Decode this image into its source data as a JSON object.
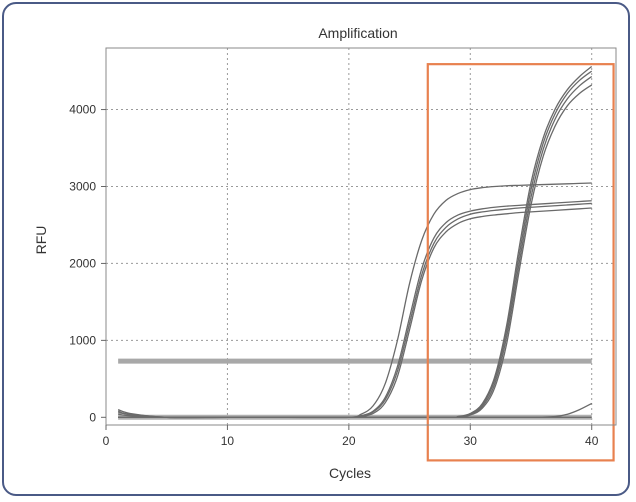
{
  "chart_data": {
    "type": "line",
    "title": "Amplification",
    "xlabel": "Cycles",
    "ylabel": "RFU",
    "xlim": [
      0,
      42
    ],
    "ylim": [
      -100,
      4800
    ],
    "xticks": [
      0,
      10,
      20,
      30,
      40
    ],
    "yticks": [
      0,
      1000,
      2000,
      3000,
      4000
    ],
    "grid": true,
    "threshold": {
      "value": 730,
      "x_range": [
        1,
        40
      ],
      "color": "#a8a8a8"
    },
    "highlight_box": {
      "x_range": [
        26.5,
        41.8
      ],
      "y_range": [
        -560,
        4590
      ],
      "color": "#e8814f"
    },
    "line_color": "#6a6a6a",
    "series": [
      {
        "x": [
          1,
          2,
          5,
          10,
          15,
          20,
          21,
          22,
          23,
          24,
          25,
          26,
          27,
          28,
          29,
          30,
          31,
          32,
          33,
          34,
          35,
          36,
          37,
          38,
          39,
          40
        ],
        "y": [
          60,
          40,
          0,
          0,
          0,
          0,
          40,
          150,
          440,
          1000,
          1740,
          2300,
          2640,
          2820,
          2910,
          2960,
          2985,
          3000,
          3010,
          3015,
          3020,
          3025,
          3030,
          3035,
          3040,
          3045
        ]
      },
      {
        "x": [
          1,
          2,
          5,
          10,
          15,
          20,
          21,
          22,
          23,
          24,
          25,
          26,
          27,
          28,
          29,
          30,
          31,
          32,
          33,
          34,
          35,
          36,
          37,
          38,
          39,
          40
        ],
        "y": [
          80,
          30,
          0,
          0,
          0,
          0,
          20,
          80,
          260,
          660,
          1300,
          1930,
          2330,
          2530,
          2630,
          2680,
          2710,
          2730,
          2745,
          2755,
          2765,
          2775,
          2785,
          2795,
          2805,
          2815
        ]
      },
      {
        "x": [
          1,
          2,
          5,
          10,
          15,
          20,
          21,
          22,
          23,
          24,
          25,
          26,
          27,
          28,
          29,
          30,
          31,
          32,
          33,
          34,
          35,
          36,
          37,
          38,
          39,
          40
        ],
        "y": [
          100,
          50,
          0,
          0,
          0,
          0,
          15,
          70,
          230,
          600,
          1220,
          1850,
          2260,
          2470,
          2580,
          2640,
          2670,
          2690,
          2705,
          2720,
          2730,
          2740,
          2750,
          2760,
          2770,
          2780
        ]
      },
      {
        "x": [
          1,
          2,
          5,
          10,
          15,
          20,
          21,
          22,
          23,
          24,
          25,
          26,
          27,
          28,
          29,
          30,
          31,
          32,
          33,
          34,
          35,
          36,
          37,
          38,
          39,
          40
        ],
        "y": [
          40,
          20,
          0,
          0,
          0,
          0,
          10,
          50,
          190,
          530,
          1140,
          1780,
          2200,
          2410,
          2520,
          2580,
          2610,
          2630,
          2645,
          2660,
          2670,
          2680,
          2690,
          2700,
          2710,
          2720
        ]
      },
      {
        "x": [
          1,
          5,
          10,
          20,
          28,
          29,
          30,
          31,
          32,
          33,
          34,
          35,
          36,
          37,
          38,
          39,
          40
        ],
        "y": [
          0,
          0,
          0,
          0,
          0,
          10,
          50,
          180,
          520,
          1200,
          2180,
          3050,
          3630,
          4010,
          4260,
          4430,
          4560
        ]
      },
      {
        "x": [
          1,
          5,
          10,
          20,
          28,
          29,
          30,
          31,
          32,
          33,
          34,
          35,
          36,
          37,
          38,
          39,
          40
        ],
        "y": [
          0,
          0,
          0,
          0,
          0,
          8,
          40,
          160,
          480,
          1130,
          2080,
          2960,
          3560,
          3950,
          4210,
          4380,
          4500
        ]
      },
      {
        "x": [
          1,
          5,
          10,
          20,
          28,
          29,
          30,
          31,
          32,
          33,
          34,
          35,
          36,
          37,
          38,
          39,
          40
        ],
        "y": [
          0,
          0,
          0,
          0,
          0,
          6,
          35,
          140,
          430,
          1050,
          1980,
          2860,
          3480,
          3880,
          4140,
          4310,
          4430
        ]
      },
      {
        "x": [
          1,
          5,
          10,
          20,
          28,
          29,
          30,
          31,
          32,
          33,
          34,
          35,
          36,
          37,
          38,
          39,
          40
        ],
        "y": [
          0,
          0,
          0,
          0,
          0,
          5,
          30,
          120,
          380,
          960,
          1880,
          2760,
          3390,
          3790,
          4050,
          4210,
          4320
        ]
      },
      {
        "x": [
          1,
          5,
          10,
          20,
          30,
          35,
          37,
          38,
          39,
          40
        ],
        "y": [
          0,
          0,
          0,
          0,
          0,
          0,
          10,
          40,
          100,
          180
        ]
      },
      {
        "x": [
          1,
          5,
          10,
          20,
          30,
          40
        ],
        "y": [
          0,
          0,
          0,
          0,
          0,
          0
        ]
      }
    ]
  }
}
